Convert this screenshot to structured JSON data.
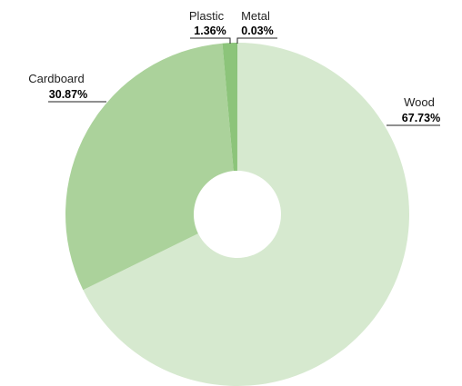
{
  "chart_data": {
    "type": "pie",
    "title": "",
    "start_angle_deg": 0,
    "direction": "clockwise",
    "donut": true,
    "slices": [
      {
        "label": "Wood",
        "percent_label": "67.73%",
        "value": 67.73,
        "color": "#d6e9cf"
      },
      {
        "label": "Cardboard",
        "percent_label": "30.87%",
        "value": 30.87,
        "color": "#abd29b"
      },
      {
        "label": "Plastic",
        "percent_label": "1.36%",
        "value": 1.36,
        "color": "#8cc47a"
      },
      {
        "label": "Metal",
        "percent_label": "0.03%",
        "value": 0.03,
        "color": "#5aaa4a"
      }
    ]
  }
}
